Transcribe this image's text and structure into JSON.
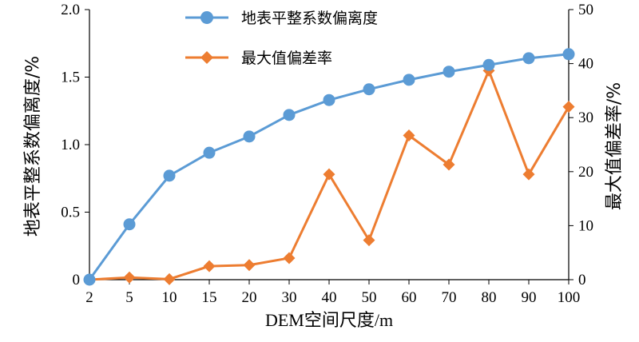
{
  "chart_data": {
    "type": "line",
    "categories": [
      "2",
      "5",
      "10",
      "15",
      "20",
      "30",
      "40",
      "50",
      "60",
      "70",
      "80",
      "90",
      "100"
    ],
    "series": [
      {
        "name": "地表平整系数偏离度",
        "axis": "left",
        "color": "#5B9BD5",
        "marker": "circle",
        "values": [
          0.0,
          0.41,
          0.77,
          0.94,
          1.06,
          1.22,
          1.33,
          1.41,
          1.48,
          1.54,
          1.59,
          1.64,
          1.67
        ]
      },
      {
        "name": "最大值偏差率",
        "axis": "right",
        "color": "#ED7D31",
        "marker": "diamond",
        "values": [
          0.0,
          0.4,
          0.1,
          2.5,
          2.7,
          4.0,
          19.5,
          7.3,
          26.7,
          21.3,
          38.7,
          19.5,
          32.0
        ]
      }
    ],
    "xlabel": "DEM空间尺度/m",
    "ylabel_left": "地表平整系数偏离度/%",
    "ylabel_right": "最大值偏差率/%",
    "ylim_left": [
      0,
      2.0
    ],
    "ylim_right": [
      0,
      50
    ],
    "yticks_left": [
      "0",
      "0.5",
      "1.0",
      "1.5",
      "2.0"
    ],
    "yticks_right": [
      "0",
      "10",
      "20",
      "30",
      "40",
      "50"
    ],
    "grid": false,
    "legend": "top-center"
  }
}
